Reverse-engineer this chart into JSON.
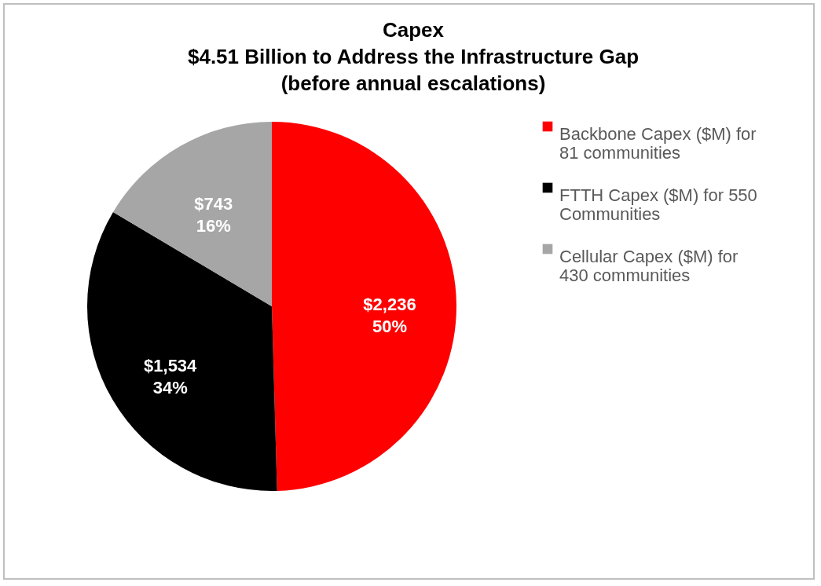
{
  "chart_data": {
    "type": "pie",
    "title": "Capex\n$4.51 Billion to Address the Infrastructure Gap\n(before annual escalations)",
    "categories": [
      "Backbone Capex ($M) for 81 communities",
      "FTTH Capex ($M) for 550 Communities",
      "Cellular Capex ($M) for 430 communities"
    ],
    "values": [
      2236,
      1534,
      743
    ],
    "colors": [
      "#ff0000",
      "#000000",
      "#a6a6a6"
    ],
    "value_labels": [
      "$2,236\n50%",
      "$1,534\n34%",
      "$743\n16%"
    ],
    "legend": "right"
  }
}
